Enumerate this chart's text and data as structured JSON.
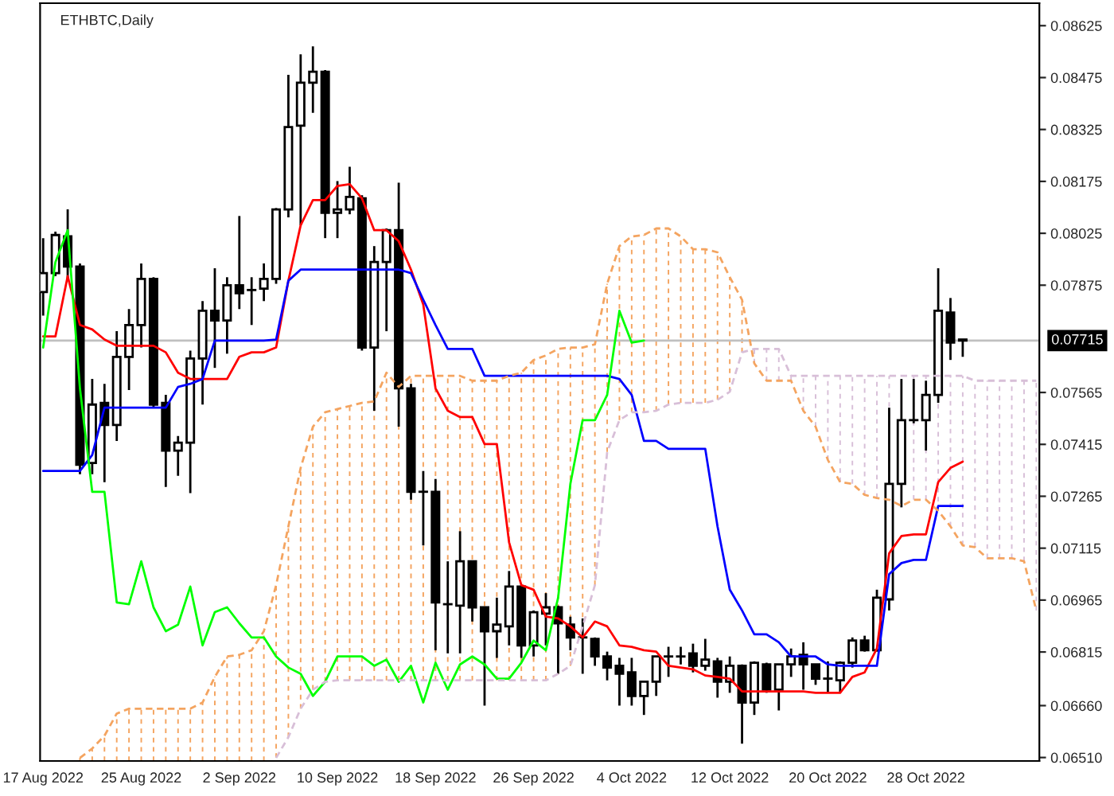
{
  "chart_data": {
    "type": "candlestick",
    "title": "ETHBTC,Daily",
    "x": [
      "2022-08-17",
      "2022-08-18",
      "2022-08-19",
      "2022-08-20",
      "2022-08-21",
      "2022-08-22",
      "2022-08-23",
      "2022-08-24",
      "2022-08-25",
      "2022-08-26",
      "2022-08-27",
      "2022-08-28",
      "2022-08-29",
      "2022-08-30",
      "2022-08-31",
      "2022-09-01",
      "2022-09-02",
      "2022-09-03",
      "2022-09-04",
      "2022-09-05",
      "2022-09-06",
      "2022-09-07",
      "2022-09-08",
      "2022-09-09",
      "2022-09-10",
      "2022-09-11",
      "2022-09-12",
      "2022-09-13",
      "2022-09-14",
      "2022-09-15",
      "2022-09-16",
      "2022-09-17",
      "2022-09-18",
      "2022-09-19",
      "2022-09-20",
      "2022-09-21",
      "2022-09-22",
      "2022-09-23",
      "2022-09-24",
      "2022-09-25",
      "2022-09-26",
      "2022-09-27",
      "2022-09-28",
      "2022-09-29",
      "2022-09-30",
      "2022-10-01",
      "2022-10-02",
      "2022-10-03",
      "2022-10-04",
      "2022-10-05",
      "2022-10-06",
      "2022-10-07",
      "2022-10-08",
      "2022-10-09",
      "2022-10-10",
      "2022-10-11",
      "2022-10-12",
      "2022-10-13",
      "2022-10-14",
      "2022-10-15",
      "2022-10-16",
      "2022-10-17",
      "2022-10-18",
      "2022-10-19",
      "2022-10-20",
      "2022-10-21",
      "2022-10-22",
      "2022-10-23",
      "2022-10-24",
      "2022-10-25",
      "2022-10-26",
      "2022-10-27",
      "2022-10-28",
      "2022-10-29",
      "2022-10-30",
      "2022-10-31"
    ],
    "ohlc": [
      [
        0.07855,
        0.08011,
        0.07787,
        0.0791
      ],
      [
        0.0791,
        0.0803,
        0.07901,
        0.0802
      ],
      [
        0.08016,
        0.08094,
        0.07888,
        0.07929
      ],
      [
        0.07929,
        0.07938,
        0.07329,
        0.07356
      ],
      [
        0.07361,
        0.07604,
        0.07329,
        0.0753
      ],
      [
        0.07535,
        0.0759,
        0.07306,
        0.07471
      ],
      [
        0.07471,
        0.07742,
        0.07425,
        0.07668
      ],
      [
        0.07668,
        0.07806,
        0.07572,
        0.0776
      ],
      [
        0.0776,
        0.07938,
        0.07695,
        0.07893
      ],
      [
        0.07893,
        0.07898,
        0.07521,
        0.0753
      ],
      [
        0.07535,
        0.07558,
        0.07292,
        0.07397
      ],
      [
        0.07397,
        0.07439,
        0.07324,
        0.0742
      ],
      [
        0.0742,
        0.07686,
        0.07274,
        0.07663
      ],
      [
        0.07663,
        0.07829,
        0.0753,
        0.07801
      ],
      [
        0.07801,
        0.07924,
        0.07636,
        0.07773
      ],
      [
        0.07773,
        0.07898,
        0.07677,
        0.07875
      ],
      [
        0.07875,
        0.08075,
        0.07806,
        0.07852
      ],
      [
        0.07861,
        0.07898,
        0.0776,
        0.07861
      ],
      [
        0.07865,
        0.07938,
        0.07829,
        0.07893
      ],
      [
        0.07893,
        0.08098,
        0.07879,
        0.08094
      ],
      [
        0.08094,
        0.08483,
        0.08071,
        0.08332
      ],
      [
        0.08336,
        0.08542,
        0.08048,
        0.0846
      ],
      [
        0.0846,
        0.08565,
        0.08373,
        0.08492
      ],
      [
        0.08492,
        0.08497,
        0.08011,
        0.08084
      ],
      [
        0.08084,
        0.08176,
        0.08011,
        0.08094
      ],
      [
        0.08094,
        0.08217,
        0.0808,
        0.0813
      ],
      [
        0.08126,
        0.08135,
        0.07686,
        0.07695
      ],
      [
        0.07695,
        0.07988,
        0.07512,
        0.07942
      ],
      [
        0.07942,
        0.08039,
        0.07742,
        0.08034
      ],
      [
        0.08034,
        0.08171,
        0.07466,
        0.07577
      ],
      [
        0.07577,
        0.0759,
        0.07255,
        0.07278
      ],
      [
        0.07278,
        0.07338,
        0.07123,
        0.07278
      ],
      [
        0.07278,
        0.07315,
        0.0682,
        0.06958
      ],
      [
        0.06953,
        0.07077,
        0.06811,
        0.06953
      ],
      [
        0.06949,
        0.07164,
        0.06811,
        0.07077
      ],
      [
        0.07077,
        0.07077,
        0.06903,
        0.06944
      ],
      [
        0.06944,
        0.06944,
        0.0666,
        0.06875
      ],
      [
        0.06875,
        0.06972,
        0.06798,
        0.06894
      ],
      [
        0.06889,
        0.07049,
        0.06834,
        0.07004
      ],
      [
        0.07004,
        0.07008,
        0.06798,
        0.06834
      ],
      [
        0.06834,
        0.06935,
        0.06802,
        0.0693
      ],
      [
        0.06926,
        0.06985,
        0.06834,
        0.06944
      ],
      [
        0.06944,
        0.06949,
        0.06752,
        0.06898
      ],
      [
        0.06894,
        0.06917,
        0.0682,
        0.06857
      ],
      [
        0.06857,
        0.06912,
        0.06752,
        0.06857
      ],
      [
        0.06853,
        0.06857,
        0.06775,
        0.06802
      ],
      [
        0.06802,
        0.06816,
        0.06733,
        0.0677
      ],
      [
        0.06775,
        0.06798,
        0.0666,
        0.06752
      ],
      [
        0.06756,
        0.06798,
        0.0666,
        0.06688
      ],
      [
        0.06688,
        0.06729,
        0.06633,
        0.06729
      ],
      [
        0.06729,
        0.06802,
        0.06688,
        0.06802
      ],
      [
        0.06802,
        0.0683,
        0.06743,
        0.06802
      ],
      [
        0.06802,
        0.0683,
        0.06779,
        0.06802
      ],
      [
        0.06811,
        0.06839,
        0.06756,
        0.06775
      ],
      [
        0.06775,
        0.06853,
        0.06761,
        0.06793
      ],
      [
        0.06788,
        0.06798,
        0.06683,
        0.06729
      ],
      [
        0.06729,
        0.06802,
        0.06697,
        0.06775
      ],
      [
        0.06775,
        0.06779,
        0.0655,
        0.06669
      ],
      [
        0.06669,
        0.06788,
        0.06633,
        0.06784
      ],
      [
        0.06779,
        0.06784,
        0.06697,
        0.06706
      ],
      [
        0.06706,
        0.06779,
        0.06646,
        0.06779
      ],
      [
        0.06779,
        0.06825,
        0.06743,
        0.06802
      ],
      [
        0.06807,
        0.06843,
        0.06706,
        0.06779
      ],
      [
        0.06779,
        0.06779,
        0.0672,
        0.06738
      ],
      [
        0.06738,
        0.06788,
        0.06697,
        0.06738
      ],
      [
        0.06733,
        0.06788,
        0.06697,
        0.06784
      ],
      [
        0.06784,
        0.06857,
        0.0677,
        0.06848
      ],
      [
        0.06848,
        0.06862,
        0.06816,
        0.0682
      ],
      [
        0.0682,
        0.06995,
        0.06816,
        0.06972
      ],
      [
        0.06967,
        0.07521,
        0.06935,
        0.07301
      ],
      [
        0.07301,
        0.07604,
        0.07233,
        0.07485
      ],
      [
        0.07485,
        0.07604,
        0.07476,
        0.07485
      ],
      [
        0.07485,
        0.07599,
        0.07397,
        0.07558
      ],
      [
        0.07558,
        0.07924,
        0.07535,
        0.07801
      ],
      [
        0.07796,
        0.07838,
        0.07659,
        0.07709
      ],
      [
        0.07718,
        0.07718,
        0.07668,
        0.07715
      ]
    ],
    "series": [
      {
        "type": "line",
        "color": "#ff0000",
        "line_style": "solid",
        "values": [
          0.07727,
          0.07727,
          0.07901,
          0.0776,
          0.07747,
          0.07718,
          0.077,
          0.077,
          0.077,
          0.077,
          0.07681,
          0.07622,
          0.07604,
          0.07604,
          0.07604,
          0.07604,
          0.07668,
          0.07681,
          0.07681,
          0.07695,
          0.07888,
          0.08048,
          0.08121,
          0.08121,
          0.08162,
          0.08167,
          0.08126,
          0.08034,
          0.08034,
          0.08002,
          0.0792,
          0.07819,
          0.07577,
          0.07512,
          0.07494,
          0.07494,
          0.07416,
          0.07416,
          0.07132,
          0.07008,
          0.06995,
          0.06917,
          0.06912,
          0.06889,
          0.06857,
          0.06903,
          0.06889,
          0.06834,
          0.0683,
          0.0682,
          0.06816,
          0.06775,
          0.0677,
          0.06765,
          0.06747,
          0.06743,
          0.06738,
          0.06701,
          0.06701,
          0.06701,
          0.06701,
          0.06701,
          0.06701,
          0.06697,
          0.06697,
          0.06697,
          0.06743,
          0.06756,
          0.06825,
          0.071,
          0.0715,
          0.07155,
          0.07155,
          0.07306,
          0.07347,
          0.07365
        ]
      },
      {
        "type": "line",
        "color": "#0000ff",
        "line_style": "solid",
        "values": [
          0.07338,
          0.07338,
          0.07338,
          0.07338,
          0.07384,
          0.07521,
          0.07521,
          0.07521,
          0.07521,
          0.07521,
          0.07521,
          0.07581,
          0.0759,
          0.07604,
          0.07715,
          0.07715,
          0.07715,
          0.07715,
          0.07715,
          0.07718,
          0.07888,
          0.0792,
          0.0792,
          0.0792,
          0.0792,
          0.0792,
          0.0792,
          0.0792,
          0.0792,
          0.0792,
          0.0791,
          0.07833,
          0.0776,
          0.07691,
          0.07691,
          0.07691,
          0.07613,
          0.07613,
          0.07613,
          0.07613,
          0.07613,
          0.07613,
          0.07613,
          0.07613,
          0.07613,
          0.07613,
          0.07613,
          0.07604,
          0.07558,
          0.07425,
          0.07425,
          0.07402,
          0.07402,
          0.07402,
          0.07402,
          0.07178,
          0.06995,
          0.06935,
          0.06866,
          0.06866,
          0.06843,
          0.06802,
          0.06802,
          0.06802,
          0.06779,
          0.06775,
          0.06775,
          0.06775,
          0.06775,
          0.0704,
          0.07072,
          0.07081,
          0.07081,
          0.07237,
          0.07237,
          0.07237
        ]
      },
      {
        "type": "line",
        "color": "#00ff00",
        "line_style": "solid",
        "x": [
          "2022-08-17",
          "2022-08-18",
          "2022-08-19",
          "2022-08-20",
          "2022-08-21",
          "2022-08-22",
          "2022-08-23",
          "2022-08-24",
          "2022-08-25",
          "2022-08-26",
          "2022-08-27",
          "2022-08-28",
          "2022-08-29",
          "2022-08-30",
          "2022-08-31",
          "2022-09-01",
          "2022-09-02",
          "2022-09-03",
          "2022-09-04",
          "2022-09-05",
          "2022-09-06",
          "2022-09-07",
          "2022-09-08",
          "2022-09-09",
          "2022-09-10",
          "2022-09-11",
          "2022-09-12",
          "2022-09-13",
          "2022-09-14",
          "2022-09-15",
          "2022-09-16",
          "2022-09-17",
          "2022-09-18",
          "2022-09-19",
          "2022-09-20",
          "2022-09-21",
          "2022-09-22",
          "2022-09-23",
          "2022-09-24",
          "2022-09-25",
          "2022-09-26",
          "2022-09-27",
          "2022-09-28",
          "2022-09-29",
          "2022-09-30",
          "2022-10-01",
          "2022-10-02",
          "2022-10-03",
          "2022-10-04",
          "2022-10-05"
        ],
        "values": [
          0.07695,
          0.07942,
          0.08034,
          0.07577,
          0.07278,
          0.07278,
          0.06958,
          0.06953,
          0.07077,
          0.06944,
          0.06875,
          0.06894,
          0.07004,
          0.06834,
          0.0693,
          0.06944,
          0.06898,
          0.06857,
          0.06857,
          0.06802,
          0.0677,
          0.06752,
          0.06688,
          0.06729,
          0.06802,
          0.06802,
          0.06802,
          0.06775,
          0.06793,
          0.06729,
          0.06775,
          0.06669,
          0.06784,
          0.06706,
          0.06779,
          0.06802,
          0.06779,
          0.06738,
          0.06738,
          0.06784,
          0.06848,
          0.0682,
          0.06972,
          0.07301,
          0.07485,
          0.07485,
          0.07558,
          0.07801,
          0.07709,
          0.07715
        ]
      },
      {
        "type": "line",
        "color": "#f4a460",
        "line_style": "dashed",
        "x": [
          "2022-08-20",
          "2022-08-21",
          "2022-08-22",
          "2022-08-23",
          "2022-08-24",
          "2022-08-25",
          "2022-08-26",
          "2022-08-27",
          "2022-08-28",
          "2022-08-29",
          "2022-08-30",
          "2022-08-31",
          "2022-09-01",
          "2022-09-02",
          "2022-09-03",
          "2022-09-04",
          "2022-09-05",
          "2022-09-06",
          "2022-09-07",
          "2022-09-08",
          "2022-09-09",
          "2022-09-10",
          "2022-09-11",
          "2022-09-12",
          "2022-09-13",
          "2022-09-14",
          "2022-09-15",
          "2022-09-16",
          "2022-09-17",
          "2022-09-18",
          "2022-09-19",
          "2022-09-20",
          "2022-09-21",
          "2022-09-22",
          "2022-09-23",
          "2022-09-24",
          "2022-09-25",
          "2022-09-26",
          "2022-09-27",
          "2022-09-28",
          "2022-09-29",
          "2022-09-30",
          "2022-10-01",
          "2022-10-02",
          "2022-10-03",
          "2022-10-04",
          "2022-10-05",
          "2022-10-06",
          "2022-10-07",
          "2022-10-08",
          "2022-10-09",
          "2022-10-10",
          "2022-10-11",
          "2022-10-12",
          "2022-10-13",
          "2022-10-14",
          "2022-10-15",
          "2022-10-16",
          "2022-10-17",
          "2022-10-18",
          "2022-10-19",
          "2022-10-20",
          "2022-10-21",
          "2022-10-22",
          "2022-10-23",
          "2022-10-24",
          "2022-10-25",
          "2022-10-26",
          "2022-10-27",
          "2022-10-28",
          "2022-10-29",
          "2022-10-30",
          "2022-10-31",
          "2022-11-01",
          "2022-11-02",
          "2022-11-03",
          "2022-11-04",
          "2022-11-05",
          "2022-11-06"
        ],
        "values": [
          0.06509,
          0.06536,
          0.06573,
          0.06637,
          0.06651,
          0.06651,
          0.06651,
          0.06651,
          0.06651,
          0.06651,
          0.06669,
          0.06743,
          0.06802,
          0.06807,
          0.0682,
          0.06875,
          0.07008,
          0.07178,
          0.07347,
          0.07466,
          0.07508,
          0.07517,
          0.07526,
          0.07535,
          0.07539,
          0.07622,
          0.07581,
          0.07613,
          0.07613,
          0.07613,
          0.07613,
          0.07613,
          0.07599,
          0.07599,
          0.07599,
          0.07613,
          0.07622,
          0.07659,
          0.07672,
          0.07691,
          0.07695,
          0.07695,
          0.07704,
          0.07879,
          0.07988,
          0.08016,
          0.0802,
          0.08039,
          0.08039,
          0.08016,
          0.07979,
          0.07979,
          0.0797,
          0.07898,
          0.07833,
          0.07649,
          0.07599,
          0.07599,
          0.07599,
          0.07512,
          0.07466,
          0.0737,
          0.07306,
          0.07301,
          0.07269,
          0.0726,
          0.07255,
          0.07237,
          0.07255,
          0.07255,
          0.07223,
          0.07178,
          0.07123,
          0.07118,
          0.07086,
          0.07086,
          0.07086,
          0.07077,
          0.06935
        ]
      },
      {
        "type": "line",
        "color": "#d8bfd8",
        "line_style": "dashed",
        "x": [
          "2022-09-05",
          "2022-09-06",
          "2022-09-07",
          "2022-09-08",
          "2022-09-09",
          "2022-09-10",
          "2022-09-11",
          "2022-09-12",
          "2022-09-13",
          "2022-09-14",
          "2022-09-15",
          "2022-09-16",
          "2022-09-17",
          "2022-09-18",
          "2022-09-19",
          "2022-09-20",
          "2022-09-21",
          "2022-09-22",
          "2022-09-23",
          "2022-09-24",
          "2022-09-25",
          "2022-09-26",
          "2022-09-27",
          "2022-09-28",
          "2022-09-29",
          "2022-09-30",
          "2022-10-01",
          "2022-10-02",
          "2022-10-03",
          "2022-10-04",
          "2022-10-05",
          "2022-10-06",
          "2022-10-07",
          "2022-10-08",
          "2022-10-09",
          "2022-10-10",
          "2022-10-11",
          "2022-10-12",
          "2022-10-13",
          "2022-10-14",
          "2022-10-15",
          "2022-10-16",
          "2022-10-17",
          "2022-10-18",
          "2022-10-19",
          "2022-10-20",
          "2022-10-21",
          "2022-10-22",
          "2022-10-23",
          "2022-10-24",
          "2022-10-25",
          "2022-10-26",
          "2022-10-27",
          "2022-10-28",
          "2022-10-29",
          "2022-10-30",
          "2022-10-31",
          "2022-11-01",
          "2022-11-02",
          "2022-11-03",
          "2022-11-04",
          "2022-11-05",
          "2022-11-06"
        ],
        "values": [
          0.06509,
          0.06569,
          0.06651,
          0.06706,
          0.06729,
          0.06733,
          0.06733,
          0.06733,
          0.06733,
          0.06733,
          0.06733,
          0.06733,
          0.06733,
          0.06733,
          0.06733,
          0.06733,
          0.06733,
          0.06733,
          0.06733,
          0.06733,
          0.06733,
          0.06733,
          0.06733,
          0.06752,
          0.06775,
          0.06889,
          0.07008,
          0.07393,
          0.07485,
          0.07508,
          0.07508,
          0.07512,
          0.0753,
          0.07535,
          0.07535,
          0.07535,
          0.07544,
          0.07567,
          0.07681,
          0.07691,
          0.07691,
          0.07691,
          0.07613,
          0.07613,
          0.07613,
          0.07613,
          0.07613,
          0.07613,
          0.07613,
          0.07613,
          0.07613,
          0.07613,
          0.07613,
          0.07613,
          0.07613,
          0.07613,
          0.07613,
          0.07599,
          0.07599,
          0.07599,
          0.07599,
          0.07599,
          0.07599
        ]
      }
    ],
    "xlim": [
      "2022-08-16T18:00",
      "2022-11-06T06:00"
    ],
    "xticks": [
      {
        "value": "2022-08-17",
        "label": "17 Aug 2022"
      },
      {
        "value": "2022-08-25",
        "label": "25 Aug 2022"
      },
      {
        "value": "2022-09-02",
        "label": "2 Sep 2022"
      },
      {
        "value": "2022-09-10",
        "label": "10 Sep 2022"
      },
      {
        "value": "2022-09-18",
        "label": "18 Sep 2022"
      },
      {
        "value": "2022-09-26",
        "label": "26 Sep 2022"
      },
      {
        "value": "2022-10-04",
        "label": "4 Oct 2022"
      },
      {
        "value": "2022-10-12",
        "label": "12 Oct 2022"
      },
      {
        "value": "2022-10-20",
        "label": "20 Oct 2022"
      },
      {
        "value": "2022-10-28",
        "label": "28 Oct 2022"
      }
    ],
    "ylim": [
      0.065,
      0.0869
    ],
    "yticks": [
      0.08625,
      0.08475,
      0.08325,
      0.08175,
      0.08025,
      0.07875,
      0.07565,
      0.07415,
      0.07265,
      0.07115,
      0.06965,
      0.06815,
      {
        "value": 0.0666,
        "label": "0.06660"
      },
      {
        "value": 0.0651,
        "label": "0.06510"
      }
    ],
    "ref_lines": [
      {
        "axis": "y",
        "value": 0.07715,
        "label": "0.07715",
        "color": "#c0c0c0",
        "line_style": "solid"
      }
    ]
  }
}
